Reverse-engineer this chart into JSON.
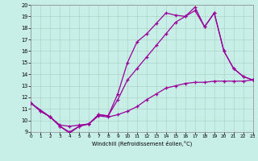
{
  "xlabel": "Windchill (Refroidissement éolien,°C)",
  "bg_color": "#c8eee8",
  "line_color": "#990099",
  "xlim": [
    0,
    23
  ],
  "ylim": [
    9,
    20
  ],
  "xticks": [
    0,
    1,
    2,
    3,
    4,
    5,
    6,
    7,
    8,
    9,
    10,
    11,
    12,
    13,
    14,
    15,
    16,
    17,
    18,
    19,
    20,
    21,
    22,
    23
  ],
  "yticks": [
    9,
    10,
    11,
    12,
    13,
    14,
    15,
    16,
    17,
    18,
    19,
    20
  ],
  "line1_x": [
    0,
    1,
    2,
    3,
    4,
    5,
    6,
    7,
    8,
    9,
    10,
    11,
    12,
    13,
    14,
    15,
    16,
    17,
    18,
    19,
    20,
    21,
    22,
    23
  ],
  "line1_y": [
    11.5,
    10.8,
    10.3,
    9.5,
    9.0,
    9.5,
    9.7,
    10.5,
    10.4,
    12.3,
    15.0,
    16.8,
    17.5,
    18.4,
    19.3,
    19.1,
    19.0,
    19.8,
    18.1,
    19.3,
    16.0,
    14.5,
    13.8,
    13.5
  ],
  "line2_x": [
    0,
    2,
    3,
    4,
    5,
    6,
    7,
    8,
    9,
    10,
    11,
    12,
    13,
    14,
    15,
    16,
    17,
    18,
    19,
    20,
    21,
    22,
    23
  ],
  "line2_y": [
    11.5,
    10.3,
    9.6,
    9.5,
    9.6,
    9.7,
    10.5,
    10.4,
    11.8,
    13.5,
    14.5,
    15.5,
    16.5,
    17.5,
    18.5,
    19.0,
    19.5,
    18.1,
    19.3,
    16.0,
    14.5,
    13.8,
    13.5
  ],
  "line3_x": [
    0,
    1,
    2,
    3,
    4,
    5,
    6,
    7,
    8,
    9,
    10,
    11,
    12,
    13,
    14,
    15,
    16,
    17,
    18,
    19,
    20,
    21,
    22,
    23
  ],
  "line3_y": [
    11.5,
    10.8,
    10.3,
    9.5,
    8.9,
    9.5,
    9.7,
    10.4,
    10.3,
    10.5,
    10.8,
    11.2,
    11.8,
    12.3,
    12.8,
    13.0,
    13.2,
    13.3,
    13.3,
    13.4,
    13.4,
    13.4,
    13.4,
    13.5
  ]
}
